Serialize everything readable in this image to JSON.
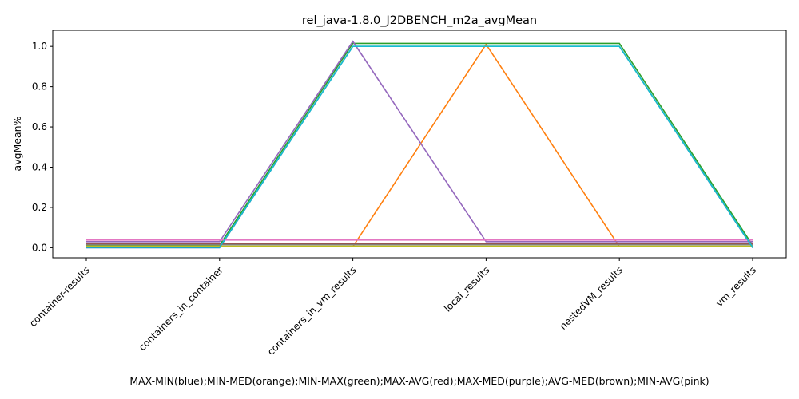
{
  "chart_data": {
    "type": "line",
    "title": "rel_java-1.8.0_J2DBENCH_m2a_avgMean",
    "xlabel": "MAX-MIN(blue);MIN-MED(orange);MIN-MAX(green);MAX-AVG(red);MAX-MED(purple);AVG-MED(brown);MIN-AVG(pink)",
    "ylabel": "avgMean%",
    "categories": [
      "container-results",
      "containers_in_container",
      "containers_in_vm_results",
      "local_results",
      "nestedVM_results",
      "vm_results"
    ],
    "ylim": [
      -0.05,
      1.08
    ],
    "yticks": [
      "0.0",
      "0.2",
      "0.4",
      "0.6",
      "0.8",
      "1.0"
    ],
    "grid": false,
    "series": [
      {
        "color": "#1f77b4",
        "values": [
          0.0,
          0.0,
          1.0,
          1.0,
          1.0,
          0.0
        ]
      },
      {
        "color": "#ff7f0e",
        "values": [
          0.005,
          0.005,
          0.005,
          1.01,
          0.005,
          0.005
        ]
      },
      {
        "color": "#2ca02c",
        "values": [
          0.012,
          0.012,
          1.015,
          1.015,
          1.015,
          0.012
        ]
      },
      {
        "color": "#d62728",
        "values": [
          0.02,
          0.02,
          0.02,
          0.02,
          0.02,
          0.02
        ]
      },
      {
        "color": "#9467bd",
        "values": [
          0.03,
          0.03,
          1.025,
          0.03,
          0.03,
          0.03
        ]
      },
      {
        "color": "#8c564b",
        "values": [
          0.022,
          0.022,
          0.022,
          0.022,
          0.022,
          0.022
        ]
      },
      {
        "color": "#e377c2",
        "values": [
          0.038,
          0.038,
          0.038,
          0.038,
          0.038,
          0.038
        ]
      },
      {
        "color": "#7f7f7f",
        "values": [
          0.015,
          0.015,
          0.015,
          0.015,
          0.015,
          0.015
        ]
      },
      {
        "color": "#bcbd22",
        "values": [
          0.008,
          0.008,
          0.008,
          0.008,
          0.008,
          0.008
        ]
      },
      {
        "color": "#17becf",
        "values": [
          0.002,
          0.002,
          1.0,
          1.0,
          1.0,
          0.002
        ]
      }
    ]
  }
}
